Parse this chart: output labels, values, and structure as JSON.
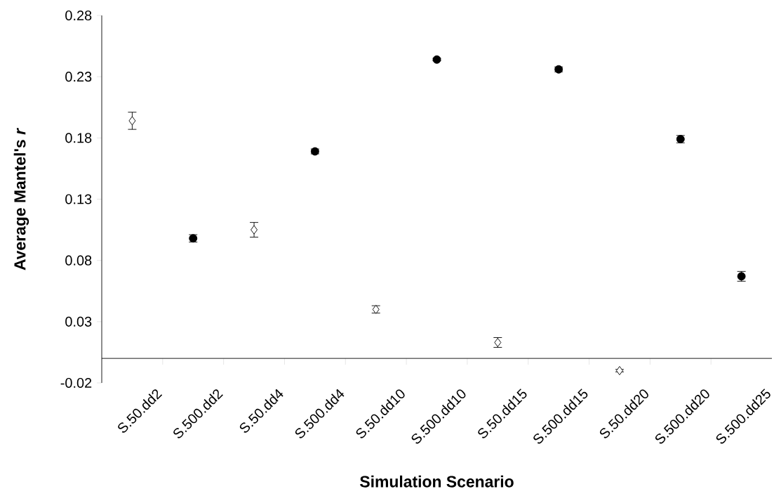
{
  "chart_data": {
    "type": "scatter",
    "xlabel": "Simulation Scenario",
    "ylabel": "Average Mantel's *r*",
    "categories": [
      "S.50.dd2",
      "S.500.dd2",
      "S.50.dd4",
      "S.500.dd4",
      "S.50.dd10",
      "S.500.dd10",
      "S.50.dd15",
      "S.500.dd15",
      "S.50.dd20",
      "S.500.dd20",
      "S.500.dd25"
    ],
    "ylim": [
      -0.02,
      0.28
    ],
    "yticks": [
      -0.02,
      0.03,
      0.08,
      0.13,
      0.18,
      0.23,
      0.28
    ],
    "series": [
      {
        "color": "#000000",
        "marker": "diamond",
        "values": [
          0.194,
          null,
          0.105,
          null,
          0.04,
          null,
          0.013,
          null,
          -0.01,
          null,
          null
        ],
        "errors": [
          0.007,
          null,
          0.006,
          null,
          0.003,
          null,
          0.004,
          null,
          0.001,
          null,
          null
        ]
      },
      {
        "color": "#000000",
        "marker": "circle",
        "values": [
          null,
          0.098,
          null,
          0.169,
          null,
          0.244,
          null,
          0.236,
          null,
          0.179,
          0.067
        ],
        "errors": [
          null,
          0.003,
          null,
          0.002,
          null,
          0.001,
          null,
          0.002,
          null,
          0.003,
          0.004
        ]
      }
    ]
  }
}
